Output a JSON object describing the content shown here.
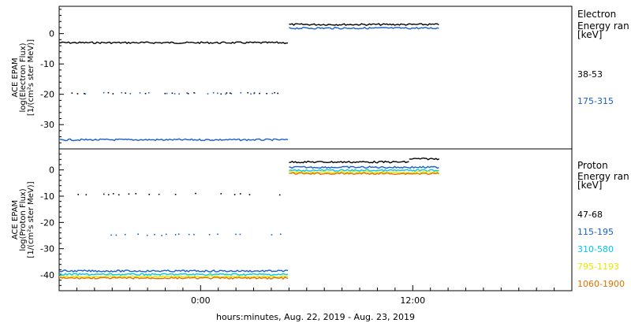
{
  "chart_data": [
    {
      "type": "scatter",
      "panel": "electron",
      "ylabel_lines": [
        "ACE EPAM",
        "log(Electron Flux)",
        "[1/(cm²s ster MeV)]"
      ],
      "ylim": [
        -38,
        9
      ],
      "yticks": [
        0,
        -10,
        -20,
        -30
      ],
      "xlim_hours": [
        -8,
        21
      ],
      "xticks": [
        {
          "hour": 0,
          "label": "0:00"
        },
        {
          "hour": 12,
          "label": "12:00"
        }
      ],
      "legend": {
        "title_lines": [
          "Electron",
          "Energy ran",
          "[keV]"
        ],
        "placement": "right"
      },
      "series": [
        {
          "name": "38-53",
          "color": "#000000",
          "segments": [
            {
              "x": [
                -8,
                5
              ],
              "y": -3.0
            },
            {
              "x": [
                5,
                13.5
              ],
              "y": 3.0
            }
          ],
          "sparse": {
            "x": [
              -7.5,
              4.6
            ],
            "y": -19.5
          }
        },
        {
          "name": "175-315",
          "color": "#1a5fcc",
          "segments": [
            {
              "x": [
                -8,
                5
              ],
              "y": -35.0
            },
            {
              "x": [
                5,
                13.5
              ],
              "y": 1.8
            }
          ],
          "sparse": {
            "x": [
              -7.5,
              4.6
            ],
            "y": -19.5
          }
        }
      ]
    },
    {
      "type": "scatter",
      "panel": "proton",
      "ylabel_lines": [
        "ACE EPAM",
        "log(Proton Flux)",
        "[1/(cm²s ster MeV)]"
      ],
      "ylim": [
        -46,
        8
      ],
      "yticks": [
        0,
        -10,
        -20,
        -30,
        -40
      ],
      "xlim_hours": [
        -8,
        21
      ],
      "xticks": [
        {
          "hour": 0,
          "label": "0:00"
        },
        {
          "hour": 12,
          "label": "12:00"
        }
      ],
      "legend": {
        "title_lines": [
          "Proton",
          "Energy ran",
          "[keV]"
        ],
        "placement": "right"
      },
      "series": [
        {
          "name": "47-68",
          "color": "#000000",
          "segments": [
            {
              "x": [
                5,
                11.8
              ],
              "y": 3.0
            },
            {
              "x": [
                11.8,
                13.5
              ],
              "y": 4.2
            }
          ],
          "sparse": {
            "x": [
              -7.5,
              4.6
            ],
            "y": -9.0
          }
        },
        {
          "name": "115-195",
          "color": "#1a5fcc",
          "segments": [
            {
              "x": [
                -8,
                5
              ],
              "y": -38.5
            },
            {
              "x": [
                5,
                13.5
              ],
              "y": 1.0
            }
          ],
          "sparse": {
            "x": [
              -7.5,
              4.6
            ],
            "y": -24.5
          }
        },
        {
          "name": "310-580",
          "color": "#00c8e0",
          "segments": [
            {
              "x": [
                -8,
                5
              ],
              "y": -39.8
            },
            {
              "x": [
                5,
                13.5
              ],
              "y": -0.2
            }
          ]
        },
        {
          "name": "795-1193",
          "color": "#e6e600",
          "segments": [
            {
              "x": [
                -8,
                5
              ],
              "y": -40.6
            },
            {
              "x": [
                5,
                13.5
              ],
              "y": -0.9
            }
          ]
        },
        {
          "name": "1060-1900",
          "color": "#e07000",
          "segments": [
            {
              "x": [
                -8,
                5
              ],
              "y": -41.2
            },
            {
              "x": [
                5,
                13.5
              ],
              "y": -1.4
            }
          ]
        }
      ]
    }
  ],
  "x_axis_label": "hours:minutes, Aug. 22, 2019 - Aug. 23, 2019"
}
